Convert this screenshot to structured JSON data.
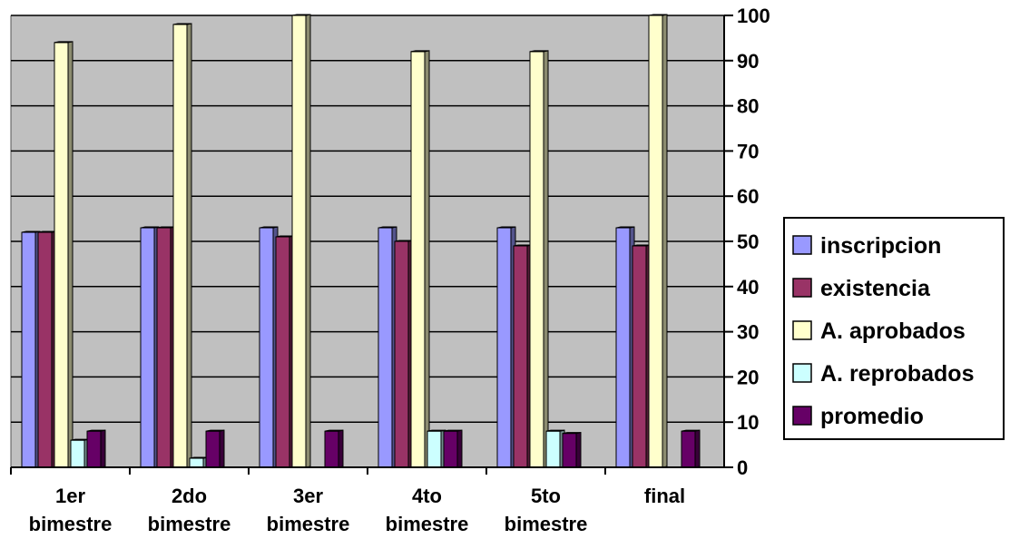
{
  "chart_data": {
    "type": "bar",
    "categories": [
      [
        "1er",
        "bimestre"
      ],
      [
        "2do",
        "bimestre"
      ],
      [
        "3er",
        "bimestre"
      ],
      [
        "4to",
        "bimestre"
      ],
      [
        "5to",
        "bimestre"
      ],
      [
        "final"
      ]
    ],
    "series": [
      {
        "name": "inscripcion",
        "color": "#9999ff",
        "values": [
          52,
          53,
          53,
          53,
          53,
          53
        ]
      },
      {
        "name": "existencia",
        "color": "#993366",
        "values": [
          52,
          53,
          51,
          50,
          49,
          49
        ]
      },
      {
        "name": "A. aprobados",
        "color": "#ffffcc",
        "values": [
          94,
          98,
          100,
          92,
          92,
          100
        ]
      },
      {
        "name": "A. reprobados",
        "color": "#ccffff",
        "values": [
          6,
          2,
          0,
          8,
          8,
          0
        ]
      },
      {
        "name": "promedio",
        "color": "#660066",
        "values": [
          8,
          8,
          8,
          8,
          7.5,
          8
        ]
      }
    ],
    "ylim": [
      0,
      100
    ],
    "yticks": [
      0,
      10,
      20,
      30,
      40,
      50,
      60,
      70,
      80,
      90,
      100
    ],
    "yaxis_side": "right",
    "grid": true,
    "legend_position": "right",
    "plot_background": "#c0c0c0",
    "title": "",
    "xlabel": "",
    "ylabel": ""
  }
}
